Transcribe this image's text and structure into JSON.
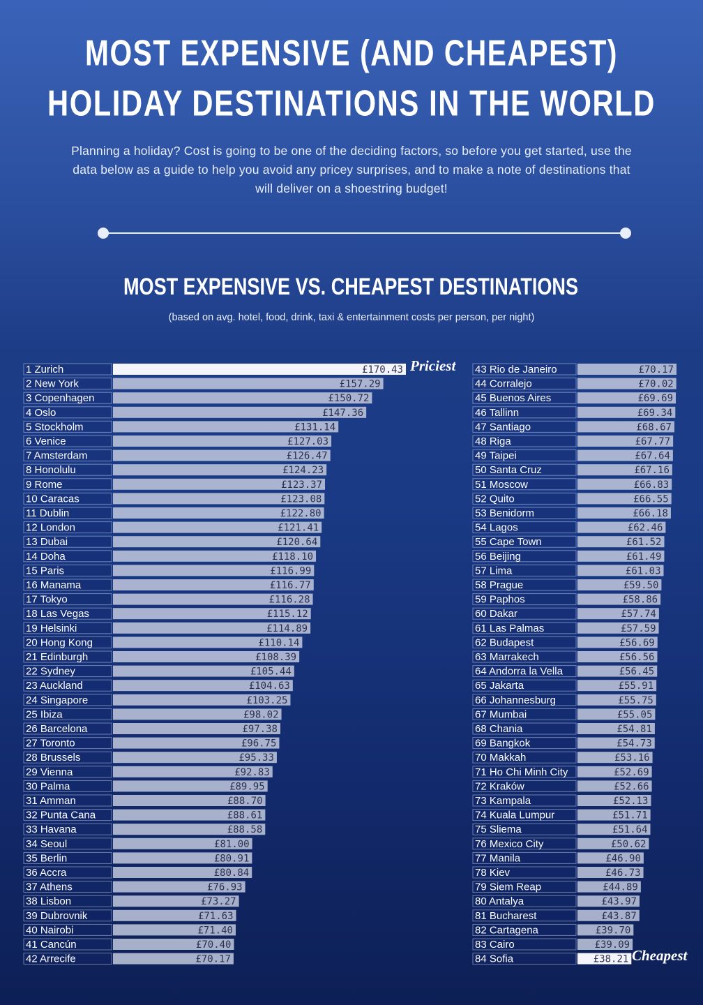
{
  "chart_data": {
    "type": "bar",
    "orientation": "horizontal",
    "title": [
      "MOST EXPENSIVE (AND CHEAPEST)",
      "HOLIDAY DESTINATIONS IN THE WORLD"
    ],
    "subtitle": "Planning a holiday? Cost is going to be one of the deciding factors, so before you get started, use the data below as a guide to help you avoid any pricey surprises, and to make a note of destinations that will deliver on a shoestring budget!",
    "chart_title": "MOST EXPENSIVE VS. CHEAPEST DESTINATIONS",
    "note": "(based on avg. hotel, food, drink, taxi & entertainment costs per person, per night)",
    "annotations": [
      "Priciest",
      "Cheapest"
    ],
    "color": "#c9cfe2",
    "categories": [
      "1 Zurich",
      "2 New York",
      "3 Copenhagen",
      "4 Oslo",
      "5 Stockholm",
      "6 Venice",
      "7 Amsterdam",
      "8 Honolulu",
      "9 Rome",
      "10 Caracas",
      "11 Dublin",
      "12 London",
      "13 Dubai",
      "14 Doha",
      "15 Paris",
      "16 Manama",
      "17 Tokyo",
      "18 Las Vegas",
      "19 Helsinki",
      "20 Hong Kong",
      "21 Edinburgh",
      "22 Sydney",
      "23 Auckland",
      "24 Singapore",
      "25 Ibiza",
      "26 Barcelona",
      "27 Toronto",
      "28 Brussels",
      "29 Vienna",
      "30 Palma",
      "31 Amman",
      "32 Punta Cana",
      "33 Havana",
      "34 Seoul",
      "35 Berlin",
      "36 Accra",
      "37 Athens",
      "38 Lisbon",
      "39 Dubrovnik",
      "40 Nairobi",
      "41 Cancún",
      "42 Arrecife",
      "43 Rio de Janeiro",
      "44 Corralejo",
      "45 Buenos Aires",
      "46 Tallinn",
      "47 Santiago",
      "48 Riga",
      "49 Taipei",
      "50 Santa Cruz",
      "51 Moscow",
      "52 Quito",
      "53 Benidorm",
      "54 Lagos",
      "55 Cape Town",
      "56 Beijing",
      "57 Lima",
      "58 Prague",
      "59 Paphos",
      "60 Dakar",
      "61 Las Palmas",
      "62 Budapest",
      "63 Marrakech",
      "64 Andorra la Vella",
      "65 Jakarta",
      "66 Johannesburg",
      "67 Mumbai",
      "68 Chania",
      "69 Bangkok",
      "70 Makkah",
      "71 Ho Chi Minh City",
      "72 Kraków",
      "73 Kampala",
      "74 Kuala Lumpur",
      "75 Sliema",
      "76 Mexico City",
      "77 Manila",
      "78 Kiev",
      "79 Siem Reap",
      "80 Antalya",
      "81 Bucharest",
      "82 Cartagena",
      "83 Cairo",
      "84 Sofia"
    ],
    "values": [
      170.43,
      157.29,
      150.72,
      147.36,
      131.14,
      127.03,
      126.47,
      124.23,
      123.37,
      123.08,
      122.8,
      121.41,
      120.64,
      118.1,
      116.99,
      116.77,
      116.28,
      115.12,
      114.89,
      110.14,
      108.39,
      105.44,
      104.63,
      103.25,
      98.02,
      97.38,
      96.75,
      95.33,
      92.83,
      89.95,
      88.7,
      88.61,
      88.58,
      81.0,
      80.91,
      80.84,
      76.93,
      73.27,
      71.63,
      71.4,
      70.4,
      70.17,
      70.17,
      70.02,
      69.69,
      69.34,
      68.67,
      67.77,
      67.64,
      67.16,
      66.83,
      66.55,
      66.18,
      62.46,
      61.52,
      61.49,
      61.03,
      59.5,
      58.86,
      57.74,
      57.59,
      56.69,
      56.56,
      56.45,
      55.91,
      55.75,
      55.05,
      54.81,
      54.73,
      53.16,
      52.69,
      52.66,
      52.13,
      51.71,
      51.64,
      50.62,
      46.9,
      46.73,
      44.89,
      43.97,
      43.87,
      39.7,
      39.09,
      38.21
    ],
    "value_labels": [
      "£170.43",
      "£157.29",
      "£150.72",
      "£147.36",
      "£131.14",
      "£127.03",
      "£126.47",
      "£124.23",
      "£123.37",
      "£123.08",
      "£122.80",
      "£121.41",
      "£120.64",
      "£118.10",
      "£116.99",
      "£116.77",
      "£116.28",
      "£115.12",
      "£114.89",
      "£110.14",
      "£108.39",
      "£105.44",
      "£104.63",
      "£103.25",
      "£98.02",
      "£97.38",
      "£96.75",
      "£95.33",
      "£92.83",
      "£89.95",
      "£88.70",
      "£88.61",
      "£88.58",
      "£81.00",
      "£80.91",
      "£80.84",
      "£76.93",
      "£73.27",
      "£71.63",
      "£71.40",
      "£70.40",
      "£70.17",
      "£70.17",
      "£70.02",
      "£69.69",
      "£69.34",
      "£68.67",
      "£67.77",
      "£67.64",
      "£67.16",
      "£66.83",
      "£66.55",
      "£66.18",
      "£62.46",
      "£61.52",
      "£61.49",
      "£61.03",
      "£59.50",
      "£58.86",
      "£57.74",
      "£57.59",
      "£56.69",
      "£56.56",
      "£56.45",
      "£55.91",
      "£55.75",
      "£55.05",
      "£54.81",
      "£54.73",
      "£53.16",
      "£52.69",
      "£52.66",
      "£52.13",
      "£51.71",
      "£51.64",
      "£50.62",
      "£46.90",
      "£46.73",
      "£44.89",
      "£43.97",
      "£43.87",
      "£39.70",
      "£39.09",
      "£38.21"
    ]
  }
}
